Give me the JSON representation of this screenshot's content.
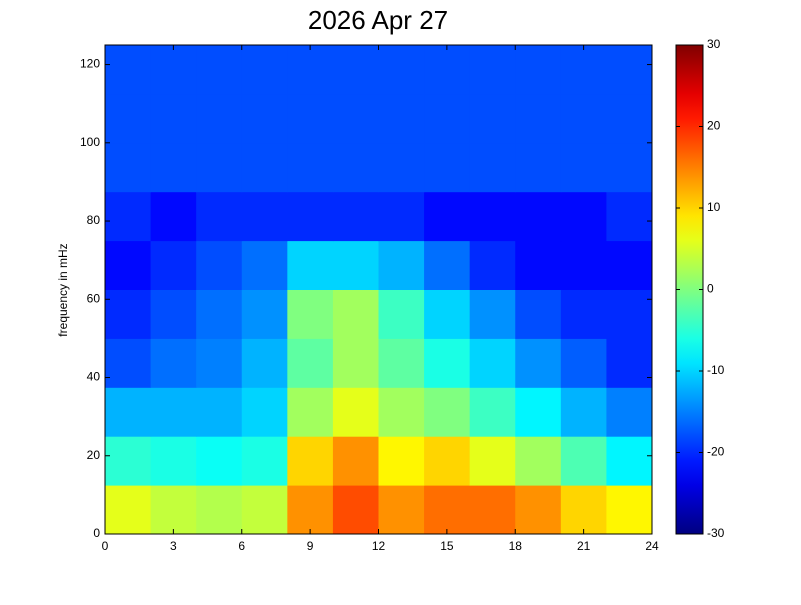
{
  "chart_data": {
    "type": "heatmap",
    "title": "2026 Apr 27",
    "ylabel": "frequency in mHz",
    "xbins": [
      0,
      2,
      4,
      6,
      8,
      10,
      12,
      14,
      16,
      18,
      20,
      22,
      24
    ],
    "ybins": [
      0,
      12.5,
      25,
      37.5,
      50,
      62.5,
      75,
      87.5,
      100,
      112.5,
      125
    ],
    "values": [
      [
        6,
        4,
        3,
        4,
        14,
        18,
        14,
        16,
        16,
        14,
        10,
        8
      ],
      [
        -5,
        -6,
        -7,
        -6,
        10,
        14,
        8,
        10,
        6,
        2,
        -3,
        -8
      ],
      [
        -12,
        -12,
        -12,
        -10,
        2,
        6,
        2,
        0,
        -4,
        -8,
        -12,
        -15
      ],
      [
        -18,
        -16,
        -15,
        -12,
        -2,
        2,
        -2,
        -6,
        -10,
        -14,
        -17,
        -20
      ],
      [
        -20,
        -18,
        -16,
        -14,
        0,
        2,
        -4,
        -10,
        -14,
        -18,
        -20,
        -20
      ],
      [
        -22,
        -20,
        -18,
        -16,
        -10,
        -10,
        -12,
        -16,
        -20,
        -22,
        -22,
        -22
      ],
      [
        -20,
        -22,
        -20,
        -20,
        -20,
        -20,
        -20,
        -22,
        -22,
        -22,
        -22,
        -20
      ],
      [
        -18,
        -18,
        -18,
        -18,
        -18,
        -18,
        -18,
        -18,
        -18,
        -18,
        -18,
        -18
      ],
      [
        -18,
        -18,
        -18,
        -18,
        -18,
        -18,
        -18,
        -18,
        -18,
        -18,
        -18,
        -18
      ],
      [
        -18,
        -18,
        -18,
        -18,
        -18,
        -18,
        -18,
        -18,
        -18,
        -18,
        -18,
        -18
      ]
    ],
    "xlim": [
      0,
      24
    ],
    "xticks": [
      0,
      3,
      6,
      9,
      12,
      15,
      18,
      21,
      24
    ],
    "ylim": [
      0,
      125
    ],
    "yticks": [
      0,
      20,
      40,
      60,
      80,
      100,
      120
    ],
    "clim": [
      -30,
      30
    ],
    "cticks": [
      -30,
      -20,
      -10,
      0,
      10,
      20,
      30
    ],
    "colormap": "jet"
  }
}
